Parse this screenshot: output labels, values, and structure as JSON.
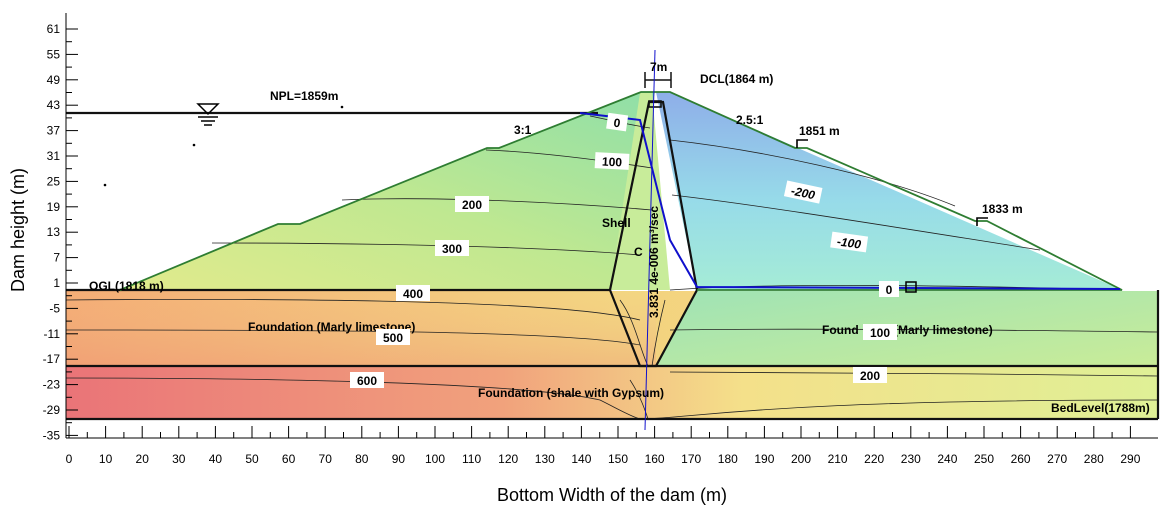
{
  "axes": {
    "x_title": "Bottom Width of the dam (m)",
    "y_title": "Dam height (m)",
    "x_ticks": [
      "0",
      "10",
      "20",
      "30",
      "40",
      "50",
      "60",
      "70",
      "80",
      "90",
      "100",
      "110",
      "120",
      "130",
      "140",
      "150",
      "160",
      "170",
      "180",
      "190",
      "200",
      "210",
      "220",
      "230",
      "240",
      "250",
      "260",
      "270",
      "280",
      "290"
    ],
    "y_ticks": [
      "61",
      "55",
      "49",
      "43",
      "37",
      "31",
      "25",
      "19",
      "13",
      "7",
      "1",
      "-5",
      "-11",
      "-17",
      "-23",
      "-29",
      "-35"
    ]
  },
  "annotations": {
    "npl": "NPL=1859m",
    "dcl": "DCL(1864 m)",
    "crest_width": "7m",
    "upstream_slope": "3:1",
    "downstream_slope": "2.5:1",
    "berm_upper": "1851 m",
    "berm_lower": "1833 m",
    "ogl": "OGL(1818 m)",
    "shell": "Shell",
    "core": "C",
    "flux": "3.831 4e-006 m³/sec",
    "foundation_left": "Foundation (Marly limestone)",
    "foundation_right_a": "Found",
    "foundation_right_b": "(Marly limestone)",
    "foundation_bottom": "Foundation  (shale with Gypsum)",
    "bed_level": "BedLevel(1788m)"
  },
  "contour_labels": {
    "c0_up": "0",
    "c100_up": "100",
    "c200": "200",
    "c300": "300",
    "c400": "400",
    "c500": "500",
    "c600": "600",
    "cm200": "-200",
    "cm100": "-100",
    "c0_down": "0",
    "c100_down": "100",
    "c200_down": "200"
  },
  "colors": {
    "high_head": "#e86a70",
    "mid_head": "#f3e48a",
    "low_head": "#9fe6b0",
    "negative_head": "#8fb3ee",
    "embankment_outline": "#2e7d32",
    "phreatic_line": "#1010cc"
  }
}
